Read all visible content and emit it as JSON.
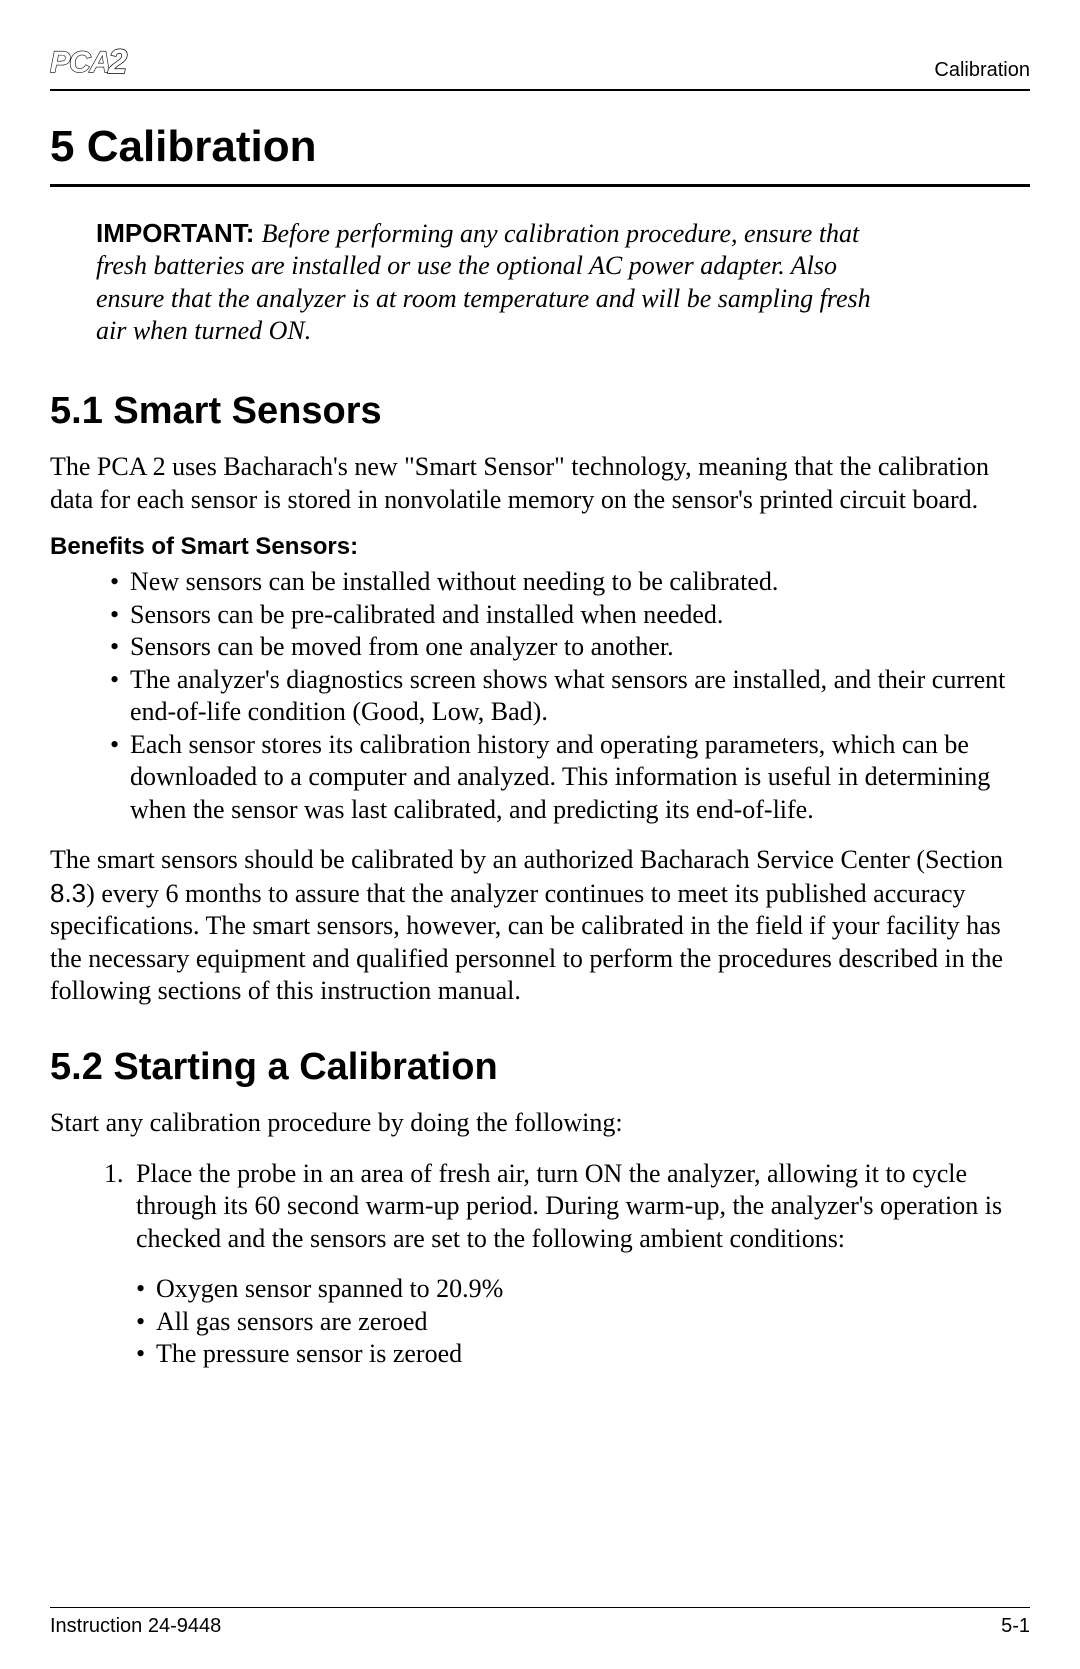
{
  "header": {
    "logo_text": "PCA",
    "logo_num": "2",
    "right_title": "Calibration"
  },
  "chapter": {
    "number_title": "5  Calibration"
  },
  "important": {
    "label": "IMPORTANT:  ",
    "text": "Before performing any calibration procedure, ensure that fresh batteries are installed or use the optional AC power adapter. Also ensure that the analyzer is at room temperature and will be sampling fresh air when turned ON."
  },
  "section_5_1": {
    "title": "5.1  Smart Sensors",
    "intro": "The PCA 2 uses Bacharach's new \"Smart Sensor\" technology, meaning that the calibration data for each sensor is stored in nonvolatile memory on the sensor's printed circuit board.",
    "subhead": "Benefits of Smart Sensors:",
    "bullets": [
      "New sensors can be installed without needing to be calibrated.",
      "Sensors can be pre-calibrated and installed when needed.",
      "Sensors can be moved from one analyzer to another.",
      "The analyzer's diagnostics screen shows what sensors are installed, and their current end-of-life condition (Good, Low, Bad).",
      "Each sensor stores its calibration history and operating parameters, which can be downloaded to a computer and analyzed. This information is useful in determining when the sensor was last calibrated, and predicting its end-of-life."
    ],
    "para2_before": "The smart sensors should be calibrated by an authorized Bacharach Service Center (Section ",
    "para2_ref": "8.3",
    "para2_after": ") every 6 months to assure that the analyzer continues to meet its published accuracy specifications. The smart sensors, however, can be calibrated in the field if your facility has the necessary equipment and qualified personnel to perform the procedures described in the following sections of this instruction manual."
  },
  "section_5_2": {
    "title": "5.2  Starting a Calibration",
    "intro": "Start any calibration procedure by doing the following:",
    "step1": "Place the probe in an area of fresh air, turn ON the analyzer, allowing it to cycle through its 60 second warm-up period. During warm-up, the analyzer's operation is checked and the sensors are set to the following ambient conditions:",
    "step1_sub": [
      "Oxygen sensor spanned to 20.9%",
      "All gas sensors are zeroed",
      "The pressure sensor is zeroed"
    ]
  },
  "footer": {
    "left": "Instruction 24-9448",
    "right": "5-1"
  }
}
